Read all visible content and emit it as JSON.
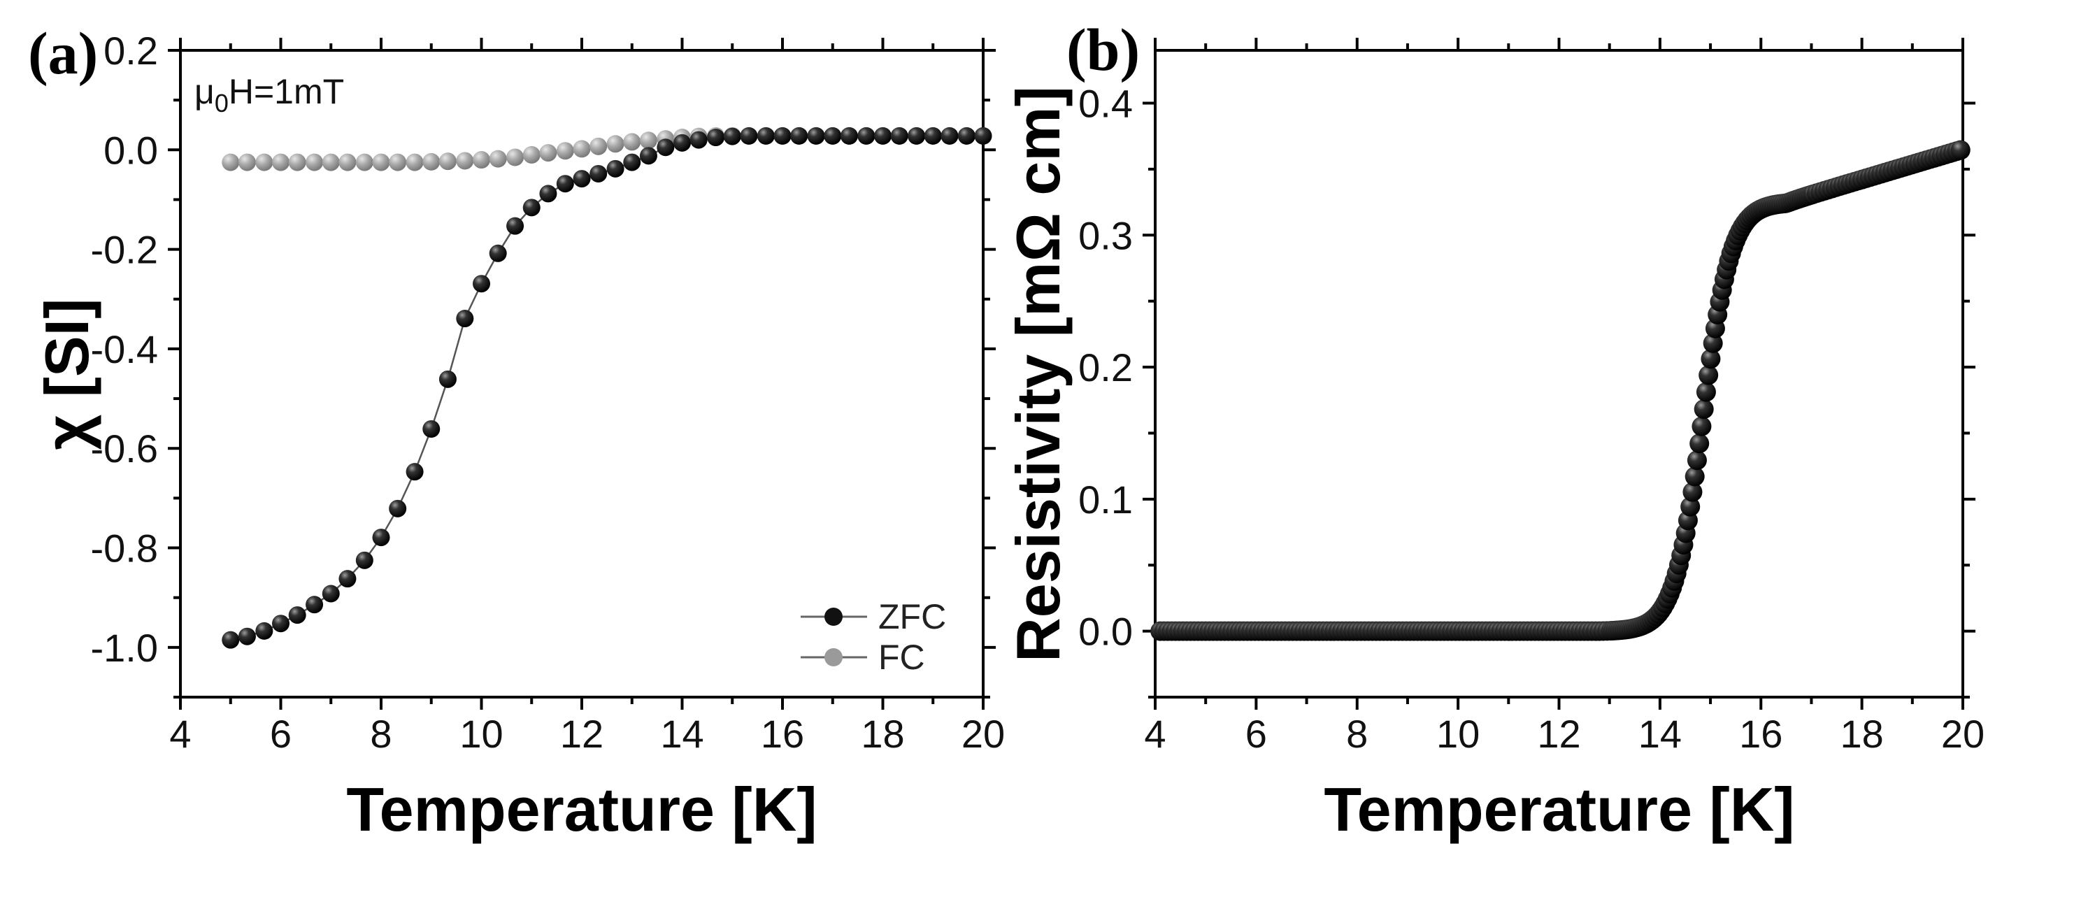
{
  "chart_data": [
    {
      "type": "scatter",
      "panel_label": "(a)",
      "xlabel": "Temperature [K]",
      "ylabel": "χ [SI]",
      "xlim": [
        4,
        20
      ],
      "ylim": [
        -1.1,
        0.2
      ],
      "xticks": [
        4,
        6,
        8,
        10,
        12,
        14,
        16,
        18,
        20
      ],
      "xtick_labels": [
        "4",
        "6",
        "8",
        "10",
        "12",
        "14",
        "16",
        "18",
        "20"
      ],
      "yticks": [
        0.2,
        0.0,
        -0.2,
        -0.4,
        -0.6,
        -0.8,
        -1.0
      ],
      "ytick_labels": [
        "0.2",
        "0.0",
        "-0.2",
        "-0.4",
        "-0.6",
        "-0.8",
        "-1.0"
      ],
      "annotation": {
        "prefix": "μ",
        "subscript": "0",
        "suffix": "H=1mT"
      },
      "legend_position": "bottom-right",
      "series": [
        {
          "name": "ZFC",
          "color": "#111111",
          "x": [
            5.0,
            5.33,
            5.67,
            6.0,
            6.33,
            6.67,
            7.0,
            7.33,
            7.67,
            8.0,
            8.33,
            8.67,
            9.0,
            9.33,
            9.67,
            10.0,
            10.33,
            10.67,
            11.0,
            11.33,
            11.67,
            12.0,
            12.33,
            12.67,
            13.0,
            13.33,
            13.67,
            14.0,
            14.33,
            14.67,
            15.0,
            15.33,
            15.67,
            16.0,
            16.33,
            16.67,
            17.0,
            17.33,
            17.67,
            18.0,
            18.33,
            18.67,
            19.0,
            19.33,
            19.67,
            20.0
          ],
          "y": [
            -0.985,
            -0.978,
            -0.967,
            -0.952,
            -0.935,
            -0.914,
            -0.892,
            -0.862,
            -0.825,
            -0.779,
            -0.721,
            -0.647,
            -0.561,
            -0.461,
            -0.339,
            -0.269,
            -0.208,
            -0.153,
            -0.116,
            -0.088,
            -0.068,
            -0.058,
            -0.048,
            -0.038,
            -0.025,
            -0.012,
            0.005,
            0.014,
            0.02,
            0.025,
            0.027,
            0.028,
            0.028,
            0.028,
            0.028,
            0.028,
            0.028,
            0.028,
            0.028,
            0.028,
            0.028,
            0.028,
            0.028,
            0.028,
            0.028,
            0.028
          ]
        },
        {
          "name": "FC",
          "color": "#9a9a9a",
          "x": [
            5.0,
            5.33,
            5.67,
            6.0,
            6.33,
            6.67,
            7.0,
            7.33,
            7.67,
            8.0,
            8.33,
            8.67,
            9.0,
            9.33,
            9.67,
            10.0,
            10.33,
            10.67,
            11.0,
            11.33,
            11.67,
            12.0,
            12.33,
            12.67,
            13.0,
            13.33,
            13.67,
            14.0,
            14.33,
            14.67,
            15.0,
            15.33,
            15.67,
            16.0,
            16.33,
            16.67,
            17.0,
            17.33,
            17.67,
            18.0,
            18.33,
            18.67,
            19.0,
            19.33,
            19.67,
            20.0
          ],
          "y": [
            -0.025,
            -0.025,
            -0.025,
            -0.025,
            -0.025,
            -0.025,
            -0.025,
            -0.025,
            -0.025,
            -0.025,
            -0.025,
            -0.025,
            -0.024,
            -0.023,
            -0.022,
            -0.02,
            -0.018,
            -0.015,
            -0.01,
            -0.006,
            -0.002,
            0.002,
            0.007,
            0.012,
            0.016,
            0.019,
            0.022,
            0.025,
            0.027,
            0.028,
            0.028,
            0.028,
            0.028,
            0.028,
            0.028,
            0.028,
            0.028,
            0.028,
            0.028,
            0.028,
            0.028,
            0.028,
            0.028,
            0.028,
            0.028,
            0.028
          ]
        }
      ]
    },
    {
      "type": "scatter",
      "panel_label": "(b)",
      "xlabel": "Temperature [K]",
      "ylabel": "Resistivity [mΩ cm]",
      "xlim": [
        4,
        20
      ],
      "ylim": [
        -0.05,
        0.44
      ],
      "xticks": [
        4,
        6,
        8,
        10,
        12,
        14,
        16,
        18,
        20
      ],
      "xtick_labels": [
        "4",
        "6",
        "8",
        "10",
        "12",
        "14",
        "16",
        "18",
        "20"
      ],
      "yticks": [
        0.4,
        0.3,
        0.2,
        0.1,
        0.0
      ],
      "ytick_labels": [
        "0.4",
        "0.3",
        "0.2",
        "0.1",
        "0.0"
      ],
      "series": [
        {
          "name": "Resistivity",
          "color": "#111111",
          "transition": {
            "onset_K": 12.8,
            "midpoint_K": 14.85,
            "width_K": 0.28,
            "normal_state_K": 16.5,
            "normal_state_value": 0.325,
            "value_at_20K": 0.365,
            "zero_value": 0.0
          },
          "x_start": 4.1,
          "x_end": 20.0
        }
      ]
    }
  ]
}
